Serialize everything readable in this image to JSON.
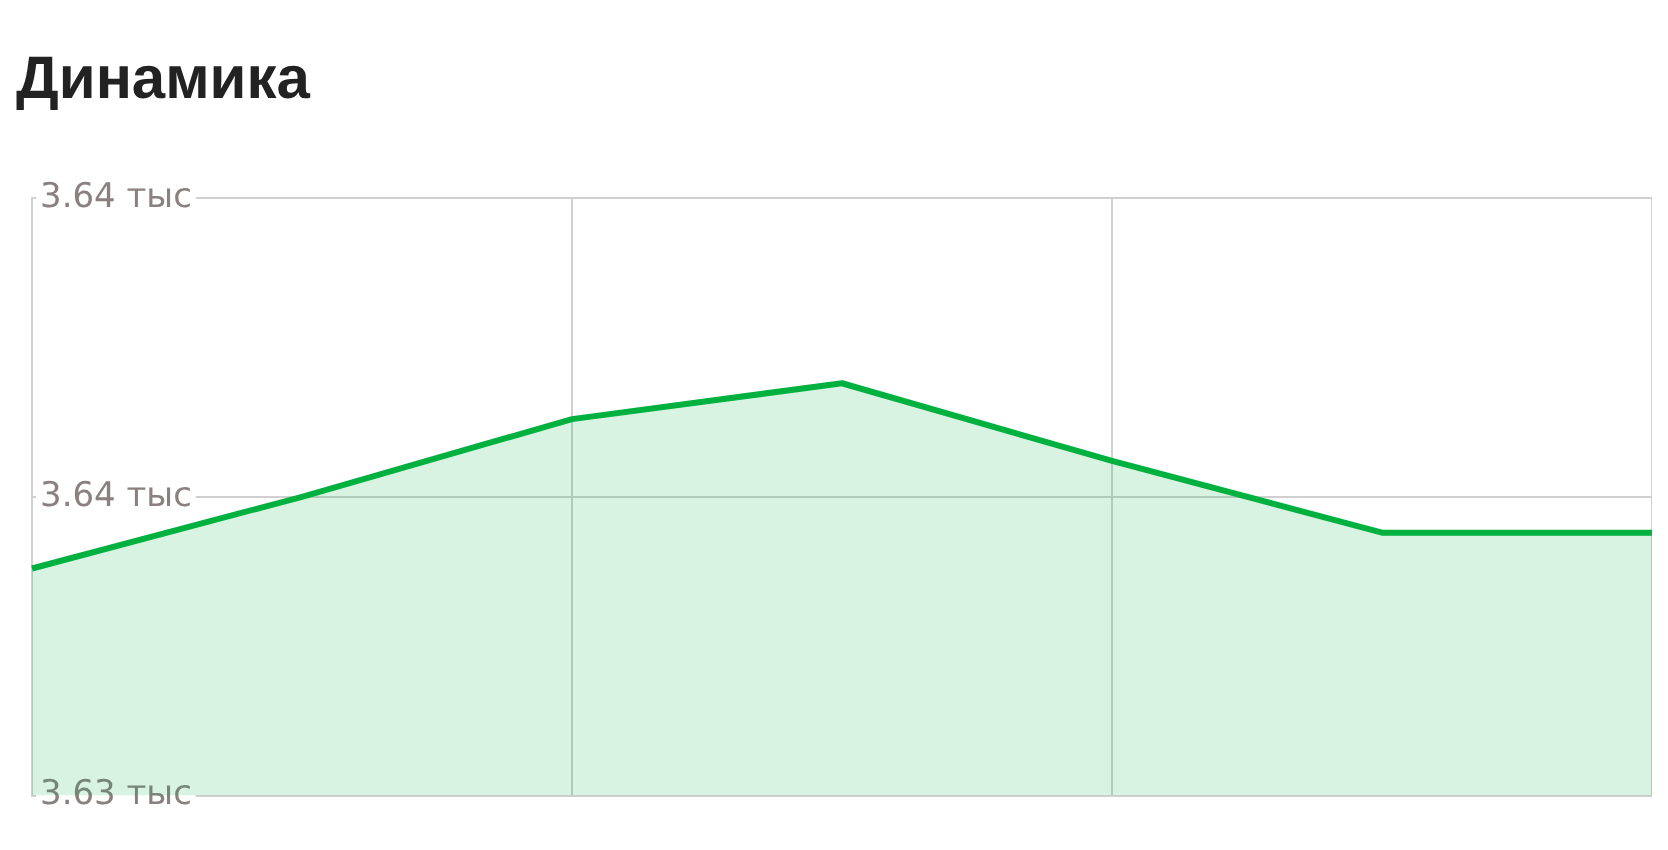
{
  "chart_data": {
    "type": "area",
    "title": "Динамика",
    "categories": [
      null,
      null,
      null,
      null,
      null,
      null,
      null
    ],
    "series": [
      {
        "color": "#00b140",
        "values": [
          3.6338,
          3.635,
          3.6363,
          3.6369,
          3.6356,
          3.6344,
          3.6344
        ]
      }
    ],
    "ylim": [
      3.63,
      3.64
    ],
    "yticks": [
      {
        "value": 3.63,
        "label": "3.63 тыс"
      },
      {
        "value": 3.635,
        "label": "3.64 тыс"
      },
      {
        "value": 3.64,
        "label": "3.64 тыс"
      }
    ],
    "grid": true,
    "tick_labels": "y"
  }
}
